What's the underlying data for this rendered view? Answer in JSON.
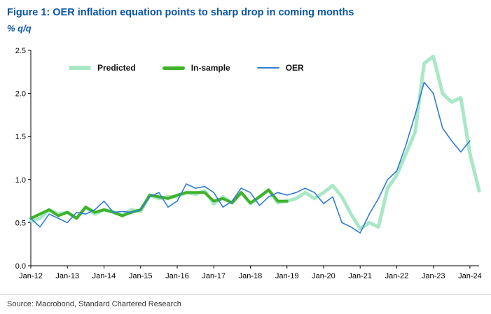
{
  "header": {
    "title": "Figure 1: OER inflation equation points to sharp drop in coming months",
    "subtitle": "% q/q"
  },
  "source": "Source: Macrobond, Standard Chartered Research",
  "colors": {
    "title_blue": "#0a55a8",
    "axis": "#000000",
    "predicted": "#a9e8c6",
    "in_sample": "#3fb229",
    "oer": "#2e7cd6"
  },
  "chart_data": {
    "type": "line",
    "title": "Figure 1: OER inflation equation points to sharp drop in coming months",
    "ylabel": "% q/q",
    "ylim": [
      0,
      2.5
    ],
    "y_ticks": [
      0,
      0.5,
      1,
      1.5,
      2,
      2.5
    ],
    "y_tick_labels": [
      "0.0",
      "0.5",
      "1.0",
      "1.5",
      "2.0",
      "2.5"
    ],
    "x_count": 50,
    "x_tick_indices": [
      0,
      4,
      8,
      12,
      16,
      20,
      24,
      28,
      32,
      36,
      40,
      44,
      48
    ],
    "x_tick_labels": [
      "Jan-12",
      "Jan-13",
      "Jan-14",
      "Jan-15",
      "Jan-16",
      "Jan-17",
      "Jan-18",
      "Jan-19",
      "Jan-20",
      "Jan-21",
      "Jan-22",
      "Jan-23",
      "Jan-24"
    ],
    "x_frequency": "quarterly",
    "grid": false,
    "legend_position": "top-inside",
    "legend": [
      {
        "label": "Predicted"
      },
      {
        "label": "In-sample"
      },
      {
        "label": "OER"
      }
    ],
    "series": [
      {
        "name": "Predicted",
        "color": "#a9e8c6",
        "width": 5,
        "values": [
          0.52,
          0.55,
          0.65,
          0.6,
          0.62,
          0.55,
          0.68,
          0.6,
          0.65,
          0.63,
          0.58,
          0.65,
          0.63,
          0.82,
          0.78,
          0.8,
          0.8,
          0.85,
          0.83,
          0.87,
          0.72,
          0.8,
          0.73,
          0.85,
          0.72,
          0.8,
          0.88,
          0.73,
          0.75,
          0.78,
          0.85,
          0.78,
          0.85,
          0.93,
          0.8,
          0.6,
          0.43,
          0.5,
          0.45,
          0.9,
          1.05,
          1.3,
          1.55,
          2.35,
          2.43,
          2.0,
          1.9,
          1.95,
          1.3,
          0.87
        ]
      },
      {
        "name": "In-sample",
        "color": "#3fb229",
        "width": 4,
        "values": [
          0.55,
          0.6,
          0.65,
          0.58,
          0.62,
          0.55,
          0.68,
          0.62,
          0.65,
          0.62,
          0.58,
          0.62,
          0.65,
          0.82,
          0.8,
          0.78,
          0.82,
          0.85,
          0.85,
          0.85,
          0.75,
          0.78,
          0.73,
          0.85,
          0.73,
          0.8,
          0.88,
          0.75,
          0.75,
          null,
          null,
          null,
          null,
          null,
          null,
          null,
          null,
          null,
          null,
          null,
          null,
          null,
          null,
          null,
          null,
          null,
          null,
          null,
          null,
          null
        ]
      },
      {
        "name": "OER",
        "color": "#2e7cd6",
        "width": 1.6,
        "values": [
          0.55,
          0.45,
          0.6,
          0.55,
          0.5,
          0.62,
          0.6,
          0.65,
          0.75,
          0.62,
          0.63,
          0.62,
          0.65,
          0.8,
          0.85,
          0.68,
          0.75,
          0.95,
          0.9,
          0.92,
          0.85,
          0.68,
          0.75,
          0.9,
          0.85,
          0.7,
          0.8,
          0.85,
          0.82,
          0.85,
          0.9,
          0.85,
          0.72,
          0.8,
          0.5,
          0.45,
          0.38,
          0.6,
          0.78,
          1.0,
          1.1,
          1.4,
          1.75,
          2.13,
          2.0,
          1.6,
          1.45,
          1.32,
          1.45,
          null
        ]
      }
    ]
  }
}
